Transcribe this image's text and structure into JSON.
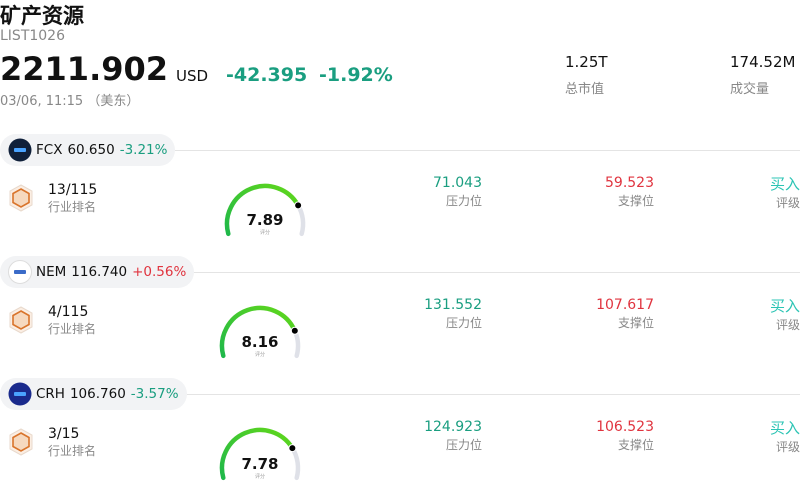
{
  "header": {
    "title": "矿产资源",
    "code": "LIST1026",
    "price": "2211.902",
    "currency": "USD",
    "change": "-42.395",
    "change_pct": "-1.92%",
    "time": "03/06, 11:15 （美东）",
    "stats": [
      {
        "value": "1.25T",
        "label": "总市值"
      },
      {
        "value": "174.52M",
        "label": "成交量"
      }
    ]
  },
  "stocks": [
    {
      "ticker": "FCX",
      "price": "60.650",
      "change": "-3.21%",
      "rank": "13/115",
      "rank_label": "行业排名",
      "score": 7.89,
      "score_label": "评分",
      "resistance": "71.043",
      "resistance_label": "压力位",
      "support": "59.523",
      "support_label": "支撑位",
      "rating": "买入",
      "rating_label": "评级"
    },
    {
      "ticker": "NEM",
      "price": "116.740",
      "change": "+0.56%",
      "rank": "4/115",
      "rank_label": "行业排名",
      "score": 8.16,
      "score_label": "评分",
      "resistance": "131.552",
      "resistance_label": "压力位",
      "support": "107.617",
      "support_label": "支撑位",
      "rating": "买入",
      "rating_label": "评级"
    },
    {
      "ticker": "CRH",
      "price": "106.760",
      "change": "-3.57%",
      "rank": "3/15",
      "rank_label": "行业排名",
      "score": 7.78,
      "score_label": "评分",
      "resistance": "124.923",
      "resistance_label": "压力位",
      "support": "106.523",
      "support_label": "支撑位",
      "rating": "买入",
      "rating_label": "评级"
    }
  ]
}
